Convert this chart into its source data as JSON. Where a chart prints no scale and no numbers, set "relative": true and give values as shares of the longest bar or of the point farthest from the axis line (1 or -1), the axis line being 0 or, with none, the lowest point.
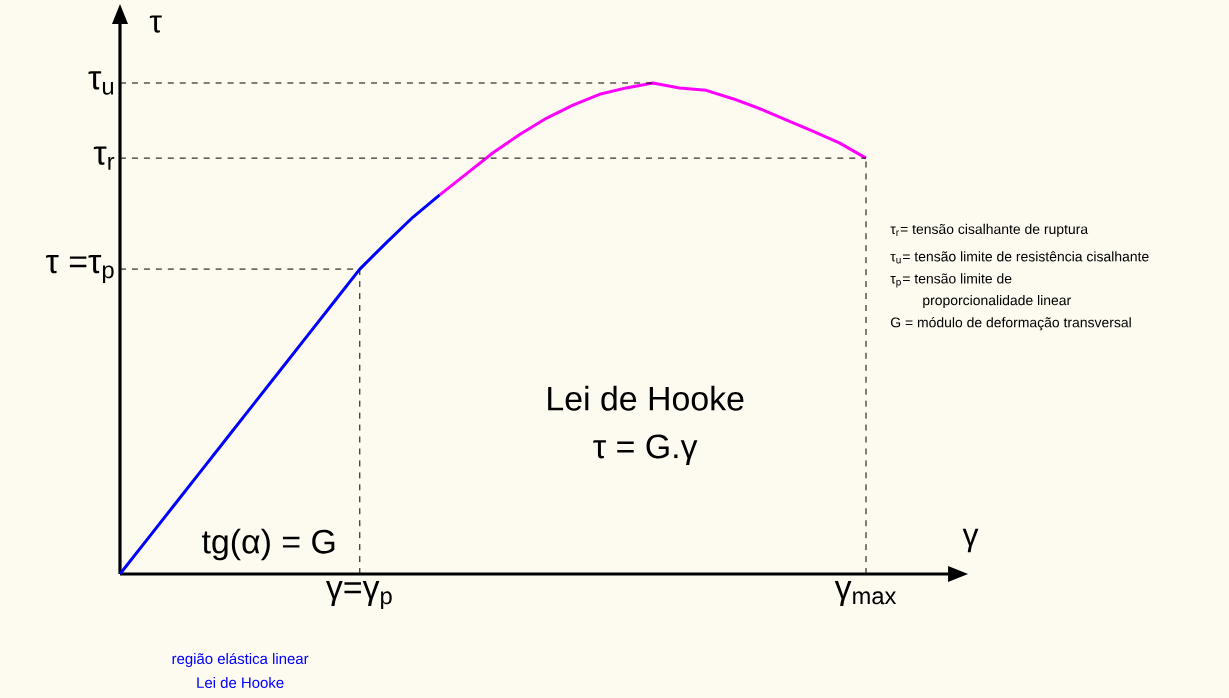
{
  "chart_data": {
    "type": "line",
    "xlabel": "γ",
    "ylabel": "τ",
    "categories": [
      null,
      null,
      null,
      null,
      null,
      null,
      null,
      null,
      null,
      "γ=γ$_{p}$",
      null,
      null,
      null,
      null,
      null,
      null,
      null,
      null,
      null,
      null,
      null,
      null,
      null,
      null,
      null,
      null,
      null,
      null,
      "γ$_{max}$"
    ],
    "series": [
      {
        "color": "#0000ff",
        "values": [
          0,
          0.069,
          0.138,
          0.207,
          0.276,
          0.345,
          0.414,
          0.483,
          0.552,
          0.621,
          0.675,
          0.727,
          0.772,
          null,
          null,
          null,
          null,
          null,
          null,
          null,
          null,
          null,
          null,
          null,
          null,
          null,
          null,
          null,
          null
        ]
      },
      {
        "color": "#ff00ff",
        "values": [
          null,
          null,
          null,
          null,
          null,
          null,
          null,
          null,
          null,
          null,
          null,
          null,
          0.772,
          0.815,
          0.858,
          0.895,
          0.928,
          0.955,
          0.977,
          0.99,
          1,
          0.99,
          0.985,
          0.968,
          0.948,
          0.925,
          0.902,
          0.878,
          0.847
        ]
      }
    ],
    "relative": true,
    "ref_lines": [
      {
        "axis": "y",
        "value": 1,
        "label": "τ$_{u}$",
        "line_style": "dashed"
      },
      {
        "axis": "y",
        "value": 0.847,
        "label": "τ$_{r}$",
        "line_style": "dashed"
      },
      {
        "axis": "y",
        "value": 0.621,
        "label": "τ  =τ$_{p}$",
        "line_style": "dashed"
      }
    ],
    "annotations": [
      "Lei de Hooke",
      "τ  = G.γ",
      "tg(α) = G",
      "região elástica linear",
      "Lei de Hooke",
      "τ$_{r}$= tensão cisalhante de ruptura",
      "τ$_{u}$= tensão limite de resistência cisalhante",
      "τ$_{p}$= tensão limite de",
      "proporcionalidade linear",
      "G = módulo de deformação transversal"
    ],
    "marker": "none",
    "line_style": "solid",
    "grid": false
  }
}
